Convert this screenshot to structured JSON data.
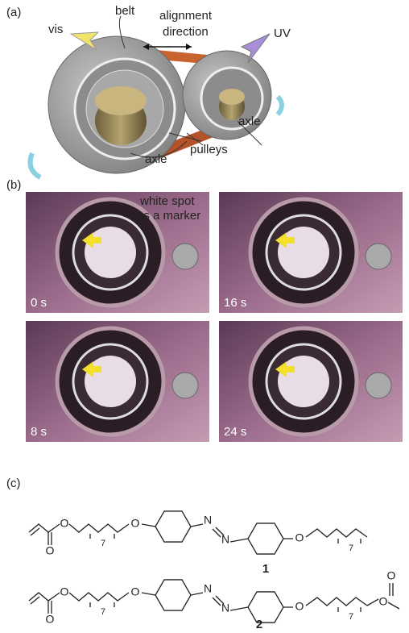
{
  "panel_a": {
    "label": "(a)",
    "vis": "vis",
    "belt": "belt",
    "alignment": "alignment",
    "direction": "direction",
    "uv": "UV",
    "axle_small": "axle",
    "axle_large": "axle",
    "pulleys": "pulleys"
  },
  "panel_b": {
    "label": "(b)",
    "annotation": [
      "white spot",
      "as a marker"
    ],
    "frames": [
      "0 s",
      "16 s",
      "8 s",
      "24 s"
    ]
  },
  "panel_c": {
    "label": "(c)",
    "compound_1": {
      "number": "1",
      "atoms": [
        "O",
        "O",
        "7",
        "O",
        "N",
        "N",
        "O",
        "7"
      ]
    },
    "compound_2": {
      "number": "2",
      "atoms": [
        "O",
        "O",
        "7",
        "O",
        "N",
        "N",
        "O",
        "7",
        "O",
        "O"
      ]
    }
  }
}
